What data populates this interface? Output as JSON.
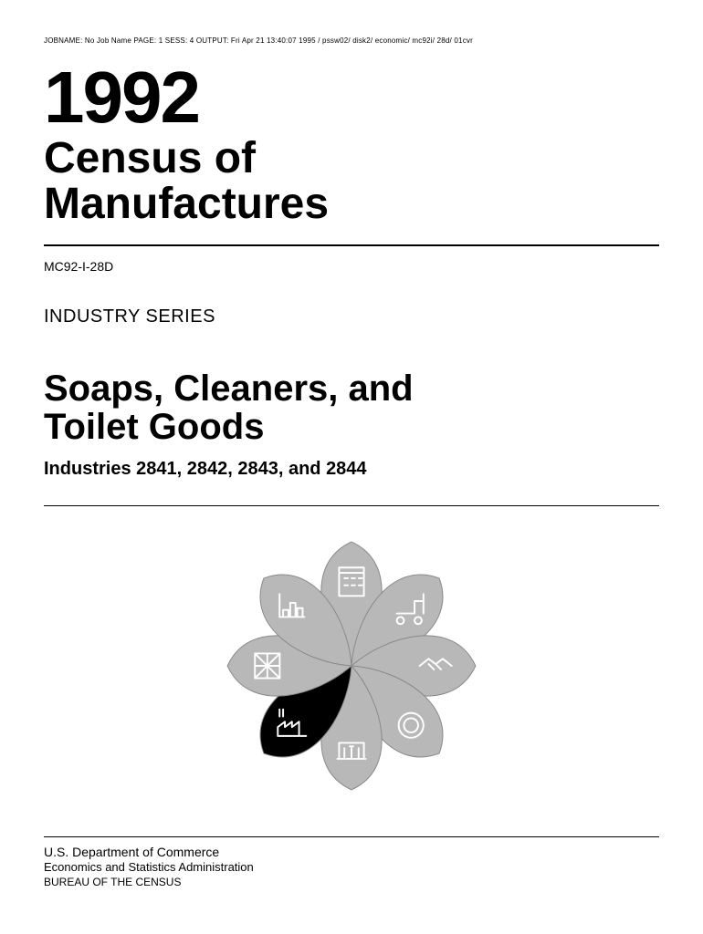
{
  "header": {
    "jobname": "JOBNAME: No Job Name PAGE: 1 SESS: 4 OUTPUT: Fri Apr 21 13:40:07 1995 / pssw02/ disk2/ economic/ mc92i/ 28d/ 01cvr"
  },
  "title": {
    "year": "1992",
    "main": "Census of\nManufactures"
  },
  "doc_code": "MC92-I-28D",
  "series_label": "INDUSTRY SERIES",
  "subject": "Soaps, Cleaners, and\nToilet Goods",
  "industries_line": "Industries 2841, 2842, 2843, and 2844",
  "emblem": {
    "petal_count": 8,
    "petal_fill": "#b8b8b8",
    "petal_stroke": "#888888",
    "highlight_index": 5,
    "highlight_fill": "#000000",
    "icon_stroke": "#ffffff",
    "size": 330
  },
  "footer": {
    "dept": "U.S. Department of Commerce",
    "admin": "Economics and Statistics Administration",
    "bureau": "BUREAU OF THE CENSUS"
  },
  "colors": {
    "text": "#000000",
    "background": "#ffffff",
    "rule": "#000000"
  }
}
